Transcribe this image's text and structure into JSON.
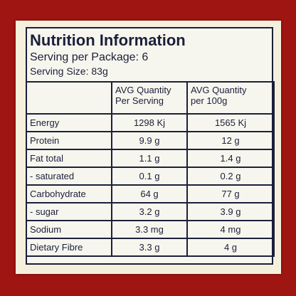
{
  "header": {
    "title": "Nutrition Information",
    "serving_per_package": "Serving per Package: 6",
    "serving_size": "Serving Size: 83g"
  },
  "table": {
    "columns": [
      [
        "AVG Quantity",
        "Per Serving"
      ],
      [
        "AVG Quantity",
        "per 100g"
      ]
    ],
    "rows": [
      [
        "Energy",
        "1298 Kj",
        "1565 Kj"
      ],
      [
        "Protein",
        "9.9 g",
        "12 g"
      ],
      [
        "Fat total",
        "1.1 g",
        "1.4 g"
      ],
      [
        "- saturated",
        "0.1 g",
        "0.2 g"
      ],
      [
        "Carbohydrate",
        "64 g",
        "77 g"
      ],
      [
        "- sugar",
        "3.2 g",
        "3.9 g"
      ],
      [
        "Sodium",
        "3.3 mg",
        "4 mg"
      ],
      [
        "Dietary Fibre",
        "3.3 g",
        "4 g"
      ]
    ]
  }
}
